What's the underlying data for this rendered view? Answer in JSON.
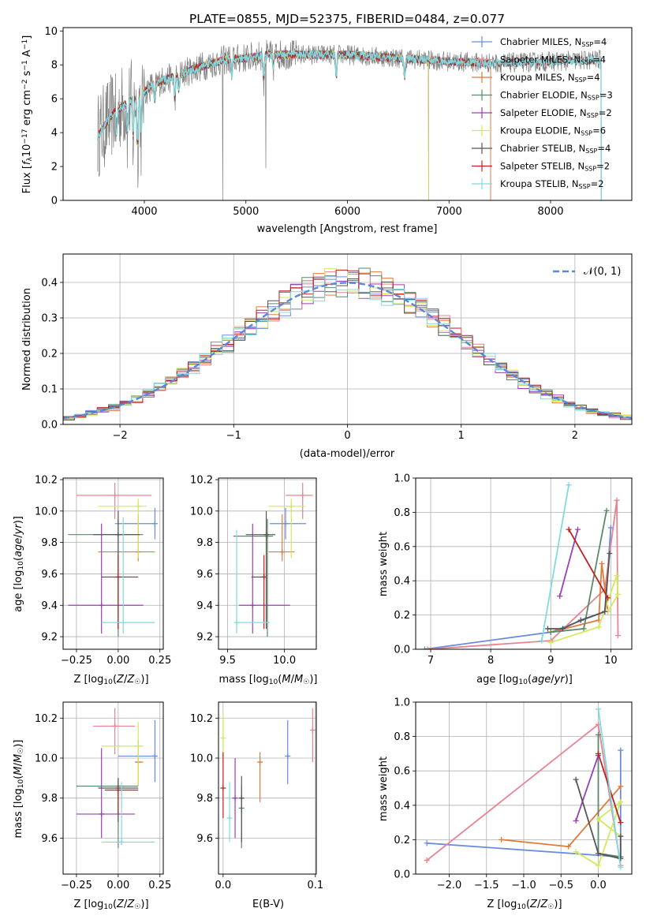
{
  "chart_data": [
    {
      "id": "spec",
      "type": "line",
      "title": "PLATE=0855, MJD=52375, FIBERID=0484, z=0.077",
      "xlabel": "wavelength [Angstrom, rest frame]",
      "ylabel": "Flux [fλ10⁻¹⁷ erg cm⁻² s⁻¹ A⁻¹]",
      "xlim": [
        3200,
        8800
      ],
      "ylim": [
        0,
        10.2
      ],
      "xticks": [
        4000,
        5000,
        6000,
        7000,
        8000
      ],
      "yticks": [
        0,
        2,
        4,
        6,
        8,
        10
      ],
      "grid": false,
      "legend_position": "right",
      "data_color": "#808080",
      "series": [
        {
          "name": "Chabrier MILES, N_SSP=4",
          "color": "#6a8ddb",
          "range": [
            3540,
            7410
          ]
        },
        {
          "name": "Salpeter MILES, N_SSP=4",
          "color": "#e8838f",
          "range": [
            3540,
            7410
          ]
        },
        {
          "name": "Kroupa MILES, N_SSP=4",
          "color": "#e07b39",
          "range": [
            3540,
            7410
          ]
        },
        {
          "name": "Chabrier ELODIE, N_SSP=3",
          "color": "#5a8a6a",
          "range": [
            3540,
            6800
          ]
        },
        {
          "name": "Salpeter ELODIE, N_SSP=2",
          "color": "#9b3fb5",
          "range": [
            3540,
            6800
          ]
        },
        {
          "name": "Kroupa ELODIE, N_SSP=6",
          "color": "#d4e85a",
          "range": [
            3540,
            6800
          ]
        },
        {
          "name": "Chabrier STELIB, N_SSP=4",
          "color": "#555555",
          "range": [
            3540,
            8500
          ]
        },
        {
          "name": "Salpeter STELIB, N_SSP=2",
          "color": "#c02020",
          "range": [
            3540,
            8500
          ]
        },
        {
          "name": "Kroupa STELIB, N_SSP=2",
          "color": "#7fdbe0",
          "range": [
            3540,
            8500
          ]
        }
      ],
      "continuum_points": [
        [
          3540,
          3.8
        ],
        [
          3700,
          5.2
        ],
        [
          3900,
          6.0
        ],
        [
          4000,
          6.4
        ],
        [
          4100,
          6.9
        ],
        [
          4300,
          7.3
        ],
        [
          4500,
          7.8
        ],
        [
          4800,
          8.3
        ],
        [
          5000,
          8.4
        ],
        [
          5200,
          8.6
        ],
        [
          5500,
          8.6
        ],
        [
          6000,
          8.6
        ],
        [
          6500,
          8.4
        ],
        [
          7000,
          8.2
        ],
        [
          7500,
          8.1
        ],
        [
          8000,
          8.2
        ],
        [
          8500,
          8.3
        ]
      ]
    },
    {
      "id": "hist",
      "type": "histogram",
      "xlabel": "(data-model)/error",
      "ylabel": "Normed distribution",
      "xlim": [
        -2.5,
        2.5
      ],
      "ylim": [
        0,
        0.48
      ],
      "xticks": [
        -2,
        -1,
        0,
        1,
        2
      ],
      "xtick_labels": [
        "−2",
        "−1",
        "0",
        "1",
        "2"
      ],
      "yticks": [
        0.0,
        0.1,
        0.2,
        0.3,
        0.4
      ],
      "ytick_labels": [
        "0.0",
        "0.1",
        "0.2",
        "0.3",
        "0.4"
      ],
      "grid": true,
      "legend_label": "𝒩(0, 1)",
      "legend_position": "top-right",
      "normal_color": "#5b87d6",
      "bin_width": 0.1,
      "bin_start": -2.5,
      "amplitude": 0.399
    },
    {
      "id": "age_z",
      "type": "scatter",
      "xlabel": "Z [log₁₀(Z/Z☉)]",
      "ylabel": "age  [log₁₀(age/yr)]",
      "xlim": [
        -0.33,
        0.27
      ],
      "ylim": [
        9.12,
        10.21
      ],
      "xticks": [
        -0.25,
        0.0,
        0.25
      ],
      "xtick_labels": [
        "−0.25",
        "0.00",
        "0.25"
      ],
      "yticks": [
        9.2,
        9.4,
        9.6,
        9.8,
        10.0,
        10.2
      ],
      "ytick_labels": [
        "9.2",
        "9.4",
        "9.6",
        "9.8",
        "10.0",
        "10.2"
      ],
      "grid": true,
      "points": [
        {
          "c": "#6a8ddb",
          "x": 0.22,
          "y": 9.92,
          "xl": -0.02,
          "xh": 0.22,
          "yl": 9.82,
          "yh": 10.02
        },
        {
          "c": "#e8838f",
          "x": -0.02,
          "y": 10.1,
          "xl": -0.25,
          "xh": 0.2,
          "yl": 9.95,
          "yh": 10.18
        },
        {
          "c": "#e07b39",
          "x": 0.12,
          "y": 9.74,
          "xl": -0.12,
          "xh": 0.22,
          "yl": 9.68,
          "yh": 9.98
        },
        {
          "c": "#5a8a6a",
          "x": 0.0,
          "y": 9.85,
          "xl": -0.3,
          "xh": 0.15,
          "yl": 9.2,
          "yh": 9.95
        },
        {
          "c": "#9b3fb5",
          "x": -0.1,
          "y": 9.4,
          "xl": -0.3,
          "xh": 0.15,
          "yl": 9.22,
          "yh": 9.92
        },
        {
          "c": "#d4e85a",
          "x": 0.12,
          "y": 10.03,
          "xl": -0.12,
          "xh": 0.17,
          "yl": 9.7,
          "yh": 10.08
        },
        {
          "c": "#555555",
          "x": 0.0,
          "y": 9.85,
          "xl": -0.15,
          "xh": 0.13,
          "yl": 9.25,
          "yh": 10.0
        },
        {
          "c": "#c02020",
          "x": 0.0,
          "y": 9.58,
          "xl": -0.1,
          "xh": 0.12,
          "yl": 9.25,
          "yh": 9.72
        },
        {
          "c": "#7fdbe0",
          "x": 0.03,
          "y": 9.29,
          "xl": -0.1,
          "xh": 0.22,
          "yl": 9.22,
          "yh": 9.96
        }
      ]
    },
    {
      "id": "age_mass",
      "type": "scatter",
      "xlabel": "mass [log₁₀(M/M☉)]",
      "ylabel": "",
      "xlim": [
        9.42,
        10.28
      ],
      "ylim": [
        9.12,
        10.21
      ],
      "xticks": [
        9.5,
        10.0
      ],
      "xtick_labels": [
        "9.5",
        "10.0"
      ],
      "yticks": [
        9.2,
        9.4,
        9.6,
        9.8,
        10.0,
        10.2
      ],
      "ytick_labels": [
        "9.2",
        "9.4",
        "9.6",
        "9.8",
        "10.0",
        "10.2"
      ],
      "grid": true,
      "points": [
        {
          "c": "#6a8ddb",
          "x": 10.01,
          "y": 9.92,
          "xl": 9.87,
          "xh": 10.19,
          "yl": 9.82,
          "yh": 10.02
        },
        {
          "c": "#e8838f",
          "x": 10.16,
          "y": 10.1,
          "xl": 10.01,
          "xh": 10.25,
          "yl": 9.95,
          "yh": 10.18
        },
        {
          "c": "#e07b39",
          "x": 9.98,
          "y": 9.74,
          "xl": 9.86,
          "xh": 10.09,
          "yl": 9.68,
          "yh": 9.98
        },
        {
          "c": "#5a8a6a",
          "x": 9.85,
          "y": 9.84,
          "xl": 9.55,
          "xh": 9.9,
          "yl": 9.2,
          "yh": 9.95
        },
        {
          "c": "#9b3fb5",
          "x": 9.72,
          "y": 9.4,
          "xl": 9.6,
          "xh": 10.05,
          "yl": 9.22,
          "yh": 9.92
        },
        {
          "c": "#d4e85a",
          "x": 10.06,
          "y": 10.03,
          "xl": 9.86,
          "xh": 10.18,
          "yl": 9.7,
          "yh": 10.08
        },
        {
          "c": "#555555",
          "x": 9.84,
          "y": 9.85,
          "xl": 9.66,
          "xh": 9.92,
          "yl": 9.25,
          "yh": 10.0
        },
        {
          "c": "#c02020",
          "x": 9.82,
          "y": 9.58,
          "xl": 9.71,
          "xh": 9.84,
          "yl": 9.25,
          "yh": 9.72
        },
        {
          "c": "#7fdbe0",
          "x": 9.58,
          "y": 9.29,
          "xl": 9.58,
          "xh": 9.87,
          "yl": 9.22,
          "yh": 9.88
        }
      ]
    },
    {
      "id": "mw_age",
      "type": "line",
      "xlabel": "age  [log₁₀(age/yr)]",
      "ylabel": "mass weight",
      "xlim": [
        6.75,
        10.35
      ],
      "ylim": [
        0,
        1.0
      ],
      "xticks": [
        7,
        8,
        9,
        10
      ],
      "xtick_labels": [
        "7",
        "8",
        "9",
        "10"
      ],
      "yticks": [
        0.0,
        0.2,
        0.4,
        0.6,
        0.8,
        1.0
      ],
      "ytick_labels": [
        "0.0",
        "0.2",
        "0.4",
        "0.6",
        "0.8",
        "1.0"
      ],
      "grid": true,
      "series": [
        {
          "c": "#6a8ddb",
          "pts": [
            [
              6.9,
              0.0
            ],
            [
              9.0,
              0.1
            ],
            [
              9.9,
              0.22
            ],
            [
              10.0,
              0.71
            ]
          ]
        },
        {
          "c": "#e8838f",
          "pts": [
            [
              6.95,
              0.0
            ],
            [
              9.0,
              0.05
            ],
            [
              9.9,
              0.35
            ],
            [
              10.1,
              0.87
            ],
            [
              10.12,
              0.08
            ]
          ]
        },
        {
          "c": "#e07b39",
          "pts": [
            [
              9.0,
              0.1
            ],
            [
              9.8,
              0.17
            ],
            [
              9.85,
              0.5
            ],
            [
              9.95,
              0.22
            ]
          ]
        },
        {
          "c": "#5a8a6a",
          "pts": [
            [
              9.0,
              0.1
            ],
            [
              9.55,
              0.12
            ],
            [
              9.93,
              0.81
            ]
          ]
        },
        {
          "c": "#9b3fb5",
          "pts": [
            [
              9.15,
              0.31
            ],
            [
              9.45,
              0.7
            ]
          ]
        },
        {
          "c": "#d4e85a",
          "pts": [
            [
              9.0,
              0.04
            ],
            [
              9.8,
              0.13
            ],
            [
              10.1,
              0.43
            ],
            [
              10.12,
              0.32
            ],
            [
              9.95,
              0.22
            ]
          ]
        },
        {
          "c": "#555555",
          "pts": [
            [
              8.95,
              0.12
            ],
            [
              9.2,
              0.12
            ],
            [
              9.5,
              0.17
            ],
            [
              9.9,
              0.22
            ],
            [
              9.98,
              0.56
            ]
          ]
        },
        {
          "c": "#c02020",
          "pts": [
            [
              9.3,
              0.7
            ],
            [
              9.95,
              0.3
            ]
          ]
        },
        {
          "c": "#7fdbe0",
          "pts": [
            [
              8.85,
              0.05
            ],
            [
              9.3,
              0.96
            ]
          ]
        }
      ]
    },
    {
      "id": "mass_z",
      "type": "scatter",
      "xlabel": "Z [log₁₀(Z/Z☉)]",
      "ylabel": "mass [log₁₀(M/M☉)]",
      "xlim": [
        -0.33,
        0.27
      ],
      "ylim": [
        9.42,
        10.28
      ],
      "xticks": [
        -0.25,
        0.0,
        0.25
      ],
      "xtick_labels": [
        "−0.25",
        "0.00",
        "0.25"
      ],
      "yticks": [
        9.6,
        9.8,
        10.0,
        10.2
      ],
      "ytick_labels": [
        "9.6",
        "9.8",
        "10.0",
        "10.2"
      ],
      "grid": true,
      "points": [
        {
          "c": "#6a8ddb",
          "x": 0.22,
          "y": 10.01,
          "xl": 0.0,
          "xh": 0.22,
          "yl": 9.88,
          "yh": 10.19
        },
        {
          "c": "#e8838f",
          "x": -0.02,
          "y": 10.16,
          "xl": -0.15,
          "xh": 0.1,
          "yl": 10.02,
          "yh": 10.25
        },
        {
          "c": "#e07b39",
          "x": 0.12,
          "y": 9.98,
          "xl": 0.1,
          "xh": 0.15,
          "yl": 9.86,
          "yh": 10.09
        },
        {
          "c": "#5a8a6a",
          "x": 0.0,
          "y": 9.86,
          "xl": -0.25,
          "xh": 0.12,
          "yl": 9.55,
          "yh": 9.9
        },
        {
          "c": "#9b3fb5",
          "x": -0.1,
          "y": 9.72,
          "xl": -0.25,
          "xh": 0.1,
          "yl": 9.6,
          "yh": 10.05
        },
        {
          "c": "#d4e85a",
          "x": 0.12,
          "y": 10.06,
          "xl": -0.1,
          "xh": 0.15,
          "yl": 9.86,
          "yh": 10.18
        },
        {
          "c": "#555555",
          "x": 0.0,
          "y": 9.85,
          "xl": -0.12,
          "xh": 0.12,
          "yl": 9.68,
          "yh": 9.9
        },
        {
          "c": "#c02020",
          "x": 0.0,
          "y": 9.84,
          "xl": -0.08,
          "xh": 0.12,
          "yl": 9.72,
          "yh": 9.86
        },
        {
          "c": "#7fdbe0",
          "x": 0.02,
          "y": 9.58,
          "xl": -0.1,
          "xh": 0.22,
          "yl": 9.58,
          "yh": 9.88
        }
      ]
    },
    {
      "id": "mass_ebv",
      "type": "scatter",
      "xlabel": "E(B-V)",
      "ylabel": "",
      "xlim": [
        -0.005,
        0.101
      ],
      "ylim": [
        9.42,
        10.28
      ],
      "xticks": [
        0.0,
        0.1
      ],
      "xtick_labels": [
        "0.0",
        "0.1"
      ],
      "yticks": [
        9.6,
        9.8,
        10.0,
        10.2
      ],
      "ytick_labels": [
        "9.6",
        "9.8",
        "10.0",
        "10.2"
      ],
      "grid": true,
      "points": [
        {
          "c": "#6a8ddb",
          "x": 0.07,
          "y": 10.01,
          "yl": 9.87,
          "yh": 10.19
        },
        {
          "c": "#e8838f",
          "x": 0.097,
          "y": 10.14,
          "yl": 9.98,
          "yh": 10.25
        },
        {
          "c": "#e07b39",
          "x": 0.04,
          "y": 9.98,
          "yl": 9.78,
          "yh": 10.03
        },
        {
          "c": "#5a8a6a",
          "x": 0.02,
          "y": 9.75,
          "yl": 9.55,
          "yh": 9.86
        },
        {
          "c": "#9b3fb5",
          "x": 0.013,
          "y": 9.8,
          "yl": 9.6,
          "yh": 10.0
        },
        {
          "c": "#d4e85a",
          "x": 0.0,
          "y": 10.1,
          "yl": 9.98,
          "yh": 10.22
        },
        {
          "c": "#555555",
          "x": 0.02,
          "y": 9.8,
          "yl": 9.58,
          "yh": 9.91
        },
        {
          "c": "#c02020",
          "x": 0.0,
          "y": 9.85,
          "yl": 9.7,
          "yh": 10.03
        },
        {
          "c": "#7fdbe0",
          "x": 0.007,
          "y": 9.7,
          "yl": 9.58,
          "yh": 9.88
        }
      ]
    },
    {
      "id": "mw_z",
      "type": "line",
      "xlabel": "Z [log₁₀(Z/Z☉)]",
      "ylabel": "mass weight",
      "xlim": [
        -2.45,
        0.45
      ],
      "ylim": [
        0,
        1.0
      ],
      "xticks": [
        -2.0,
        -1.5,
        -1.0,
        -0.5,
        0.0
      ],
      "xtick_labels": [
        "−2.0",
        "−1.5",
        "−1.0",
        "−0.5",
        "0.0"
      ],
      "yticks": [
        0.0,
        0.2,
        0.4,
        0.6,
        0.8,
        1.0
      ],
      "ytick_labels": [
        "0.0",
        "0.2",
        "0.4",
        "0.6",
        "0.8",
        "1.0"
      ],
      "grid": true,
      "series": [
        {
          "c": "#6a8ddb",
          "pts": [
            [
              -2.3,
              0.18
            ],
            [
              0.3,
              0.1
            ],
            [
              0.3,
              0.72
            ]
          ]
        },
        {
          "c": "#e8838f",
          "pts": [
            [
              -2.3,
              0.08
            ],
            [
              0.0,
              0.87
            ],
            [
              0.3,
              0.05
            ]
          ]
        },
        {
          "c": "#e07b39",
          "pts": [
            [
              -1.3,
              0.2
            ],
            [
              -0.4,
              0.16
            ],
            [
              0.3,
              0.51
            ]
          ]
        },
        {
          "c": "#5a8a6a",
          "pts": [
            [
              0.0,
              0.81
            ],
            [
              0.0,
              0.12
            ],
            [
              0.3,
              0.1
            ]
          ]
        },
        {
          "c": "#9b3fb5",
          "pts": [
            [
              -0.3,
              0.31
            ],
            [
              0.0,
              0.69
            ]
          ]
        },
        {
          "c": "#d4e85a",
          "pts": [
            [
              -0.3,
              0.13
            ],
            [
              0.0,
              0.05
            ],
            [
              0.3,
              0.42
            ],
            [
              0.0,
              0.32
            ],
            [
              0.3,
              0.22
            ]
          ]
        },
        {
          "c": "#555555",
          "pts": [
            [
              -0.3,
              0.55
            ],
            [
              0.0,
              0.12
            ],
            [
              0.3,
              0.09
            ],
            [
              0.3,
              0.22
            ]
          ]
        },
        {
          "c": "#c02020",
          "pts": [
            [
              0.0,
              0.7
            ],
            [
              0.3,
              0.3
            ]
          ]
        },
        {
          "c": "#7fdbe0",
          "pts": [
            [
              0.0,
              0.96
            ],
            [
              0.3,
              0.04
            ]
          ]
        }
      ]
    }
  ]
}
